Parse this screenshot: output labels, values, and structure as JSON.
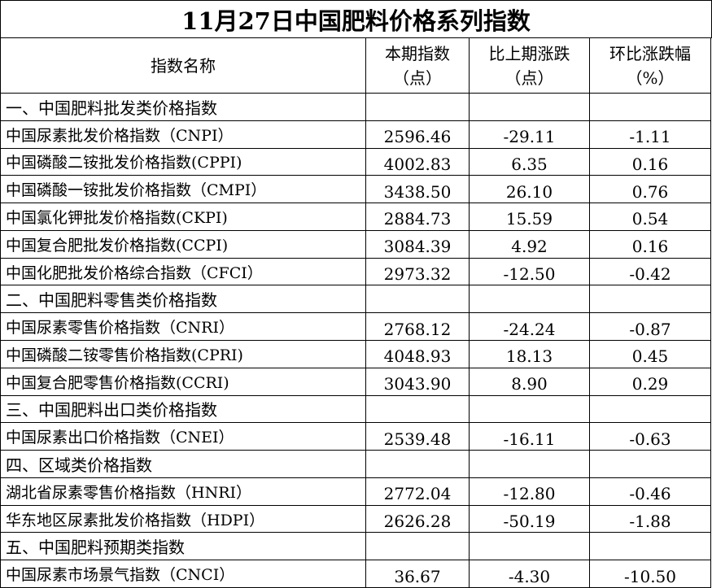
{
  "title": "11月27日中国肥料价格系列指数",
  "table": {
    "header": [
      [
        "指数名称"
      ],
      [
        "本期指数",
        "（点）"
      ],
      [
        "比上期涨跌",
        "（点）"
      ],
      [
        "环比涨跌幅",
        "（%）"
      ]
    ],
    "rows": [
      {
        "section": "一、中国肥料批发类价格指数"
      },
      {
        "cells": [
          "中国尿素批发价格指数（CNPI）",
          "2596.46",
          "-29.11",
          "-1.11"
        ]
      },
      {
        "cells": [
          "中国磷酸二铵批发价格指数(CPPI)",
          "4002.83",
          "6.35",
          "0.16"
        ]
      },
      {
        "cells": [
          "中国磷酸一铵批发价格指数（CMPI）",
          "3438.50",
          "26.10",
          "0.76"
        ]
      },
      {
        "cells": [
          "中国氯化钾批发价格指数(CKPI)",
          "2884.73",
          "15.59",
          "0.54"
        ]
      },
      {
        "cells": [
          "中国复合肥批发价格指数(CCPI)",
          "3084.39",
          "4.92",
          "0.16"
        ]
      },
      {
        "cells": [
          "中国化肥批发价格综合指数（CFCI）",
          "2973.32",
          "-12.50",
          "-0.42"
        ]
      },
      {
        "section": "二、中国肥料零售类价格指数"
      },
      {
        "cells": [
          "中国尿素零售价格指数（CNRI）",
          "2768.12",
          "-24.24",
          "-0.87"
        ]
      },
      {
        "cells": [
          "中国磷酸二铵零售价格指数(CPRI)",
          "4048.93",
          "18.13",
          "0.45"
        ]
      },
      {
        "cells": [
          "中国复合肥零售价格指数(CCRI)",
          "3043.90",
          "8.90",
          "0.29"
        ]
      },
      {
        "section": "三、中国肥料出口类价格指数"
      },
      {
        "cells": [
          "中国尿素出口价格指数（CNEI）",
          "2539.48",
          "-16.11",
          "-0.63"
        ]
      },
      {
        "section": "四、区域类价格指数"
      },
      {
        "cells": [
          "湖北省尿素零售价格指数（HNRI）",
          "2772.04",
          "-12.80",
          "-0.46"
        ]
      },
      {
        "cells": [
          "华东地区尿素批发价格指数（HDPI）",
          "2626.28",
          "-50.19",
          "-1.88"
        ]
      },
      {
        "section": "五、中国肥料预期类指数"
      },
      {
        "cells": [
          "中国尿素市场景气指数（CNCI）",
          "36.67",
          "-4.30",
          "-10.50"
        ]
      }
    ]
  }
}
